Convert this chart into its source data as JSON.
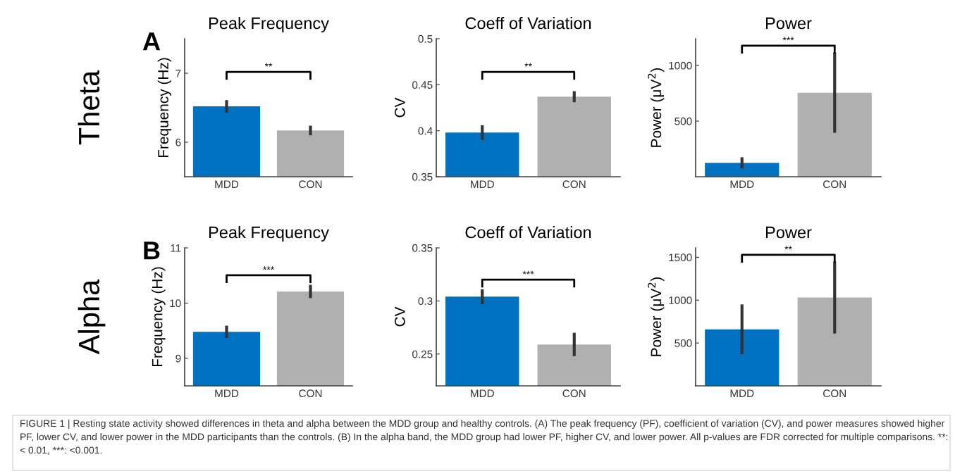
{
  "chart_data": [
    {
      "type": "bar",
      "title": "Peak Frequency",
      "ylabel": "Frequency (Hz)",
      "categories": [
        "MDD",
        "CON"
      ],
      "values": [
        6.52,
        6.17
      ],
      "errors": [
        0.09,
        0.07
      ],
      "colors": [
        "#0070c0",
        "#b0b0b0"
      ],
      "ylim": [
        5.5,
        7.5
      ],
      "yticks": [
        6,
        7
      ],
      "grid": false,
      "legend": false,
      "annotations": [
        "**",
        "A",
        "Theta",
        "FIGURE 1 | Resting state activity showed differences in theta and alpha between the MDD group and healthy controls. (A) The peak frequency (PF), coefficient of variation (CV), and power measures showed higher PF, lower CV, and lower power in the MDD participants than the controls. (B) In the alpha band, the MDD group had lower PF, higher CV, and lower power. All p-values are FDR corrected for multiple comparisons. **: < 0.01, ***: <0.001."
      ]
    },
    {
      "type": "bar",
      "title": "Coeff of Variation",
      "ylabel": "CV",
      "categories": [
        "MDD",
        "CON"
      ],
      "values": [
        0.398,
        0.437
      ],
      "errors": [
        0.008,
        0.006
      ],
      "colors": [
        "#0070c0",
        "#b0b0b0"
      ],
      "ylim": [
        0.35,
        0.5
      ],
      "yticks": [
        0.35,
        0.4,
        0.45,
        0.5
      ],
      "grid": false,
      "legend": false,
      "annotations": [
        "**"
      ]
    },
    {
      "type": "bar",
      "title": "Power",
      "ylabel": "Power (μV$^{2}$)",
      "categories": [
        "MDD",
        "CON"
      ],
      "values": [
        125,
        755
      ],
      "errors": [
        50,
        360
      ],
      "colors": [
        "#0070c0",
        "#b0b0b0"
      ],
      "ylim": [
        0,
        1240
      ],
      "yticks": [
        500,
        1000
      ],
      "grid": false,
      "legend": false,
      "annotations": [
        "***"
      ]
    },
    {
      "type": "bar",
      "title": "Peak Frequency",
      "ylabel": "Frequency (Hz)",
      "categories": [
        "MDD",
        "CON"
      ],
      "values": [
        9.48,
        10.21
      ],
      "errors": [
        0.11,
        0.12
      ],
      "colors": [
        "#0070c0",
        "#b0b0b0"
      ],
      "ylim": [
        8.5,
        11
      ],
      "yticks": [
        9,
        10,
        11
      ],
      "grid": false,
      "legend": false,
      "annotations": [
        "***",
        "B",
        "Alpha"
      ]
    },
    {
      "type": "bar",
      "title": "Coeff of Variation",
      "ylabel": "CV",
      "categories": [
        "MDD",
        "CON"
      ],
      "values": [
        0.304,
        0.259
      ],
      "errors": [
        0.007,
        0.011
      ],
      "colors": [
        "#0070c0",
        "#b0b0b0"
      ],
      "ylim": [
        0.22,
        0.35
      ],
      "yticks": [
        0.25,
        0.3,
        0.35
      ],
      "grid": false,
      "legend": false,
      "annotations": [
        "***"
      ]
    },
    {
      "type": "bar",
      "title": "Power",
      "ylabel": "Power (μV$^{2}$)",
      "categories": [
        "MDD",
        "CON"
      ],
      "values": [
        660,
        1030
      ],
      "errors": [
        290,
        420
      ],
      "colors": [
        "#0070c0",
        "#b0b0b0"
      ],
      "ylim": [
        0,
        1610
      ],
      "yticks": [
        500,
        1000,
        1500
      ],
      "grid": false,
      "legend": false,
      "annotations": [
        "**"
      ]
    }
  ]
}
